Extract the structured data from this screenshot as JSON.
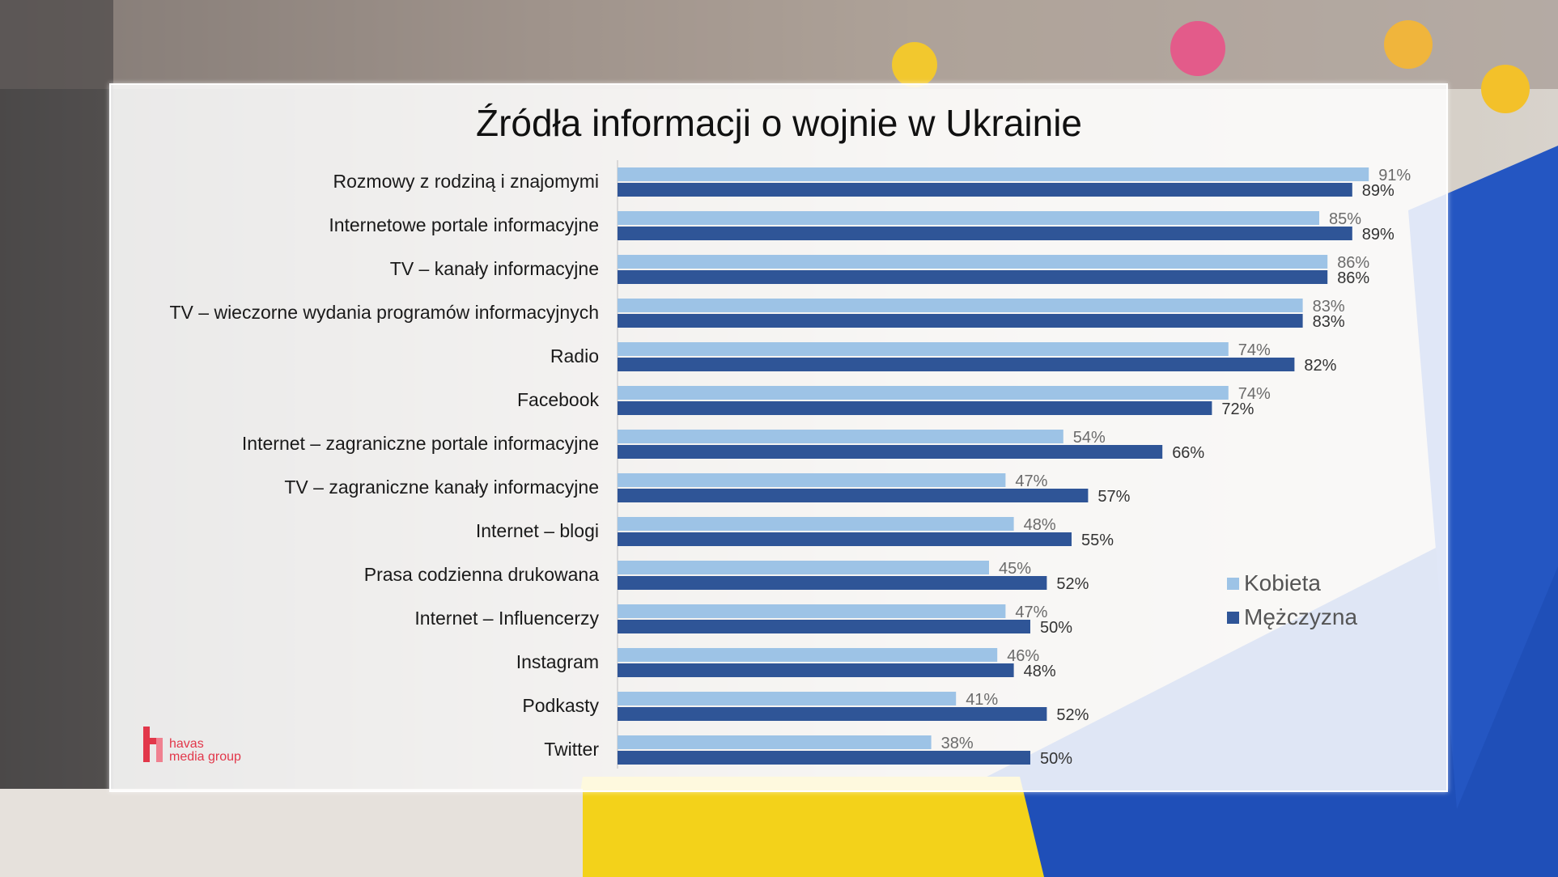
{
  "title": "Źródła informacji o wojnie w Ukrainie",
  "legend": [
    {
      "name": "Kobieta",
      "color": "#9dc3e6"
    },
    {
      "name": "Mężczyzna",
      "color": "#2f5597"
    }
  ],
  "logo": {
    "line1": "havas",
    "line2": "media group",
    "color": "#e2374a"
  },
  "chart_data": {
    "type": "bar",
    "orientation": "horizontal",
    "title": "Źródła informacji o wojnie w Ukrainie",
    "categories": [
      "Rozmowy z rodziną i znajomymi",
      "Internetowe portale informacyjne",
      "TV – kanały informacyjne",
      "TV – wieczorne wydania programów informacyjnych",
      "Radio",
      "Facebook",
      "Internet – zagraniczne portale informacyjne",
      "TV – zagraniczne kanały informacyjne",
      "Internet – blogi",
      "Prasa codzienna drukowana",
      "Internet – Influencerzy",
      "Instagram",
      "Podkasty",
      "Twitter"
    ],
    "series": [
      {
        "name": "Kobieta",
        "color": "#9dc3e6",
        "values": [
          91,
          85,
          86,
          83,
          74,
          74,
          54,
          47,
          48,
          45,
          47,
          46,
          41,
          38
        ],
        "labels": [
          "91%",
          "85%",
          "86%",
          "83%",
          "74%",
          "74%",
          "54%",
          "47%",
          "48%",
          "45%",
          "47%",
          "46%",
          "41%",
          "38%"
        ]
      },
      {
        "name": "Mężczyzna",
        "color": "#2f5597",
        "values": [
          89,
          89,
          86,
          83,
          82,
          72,
          66,
          57,
          55,
          52,
          50,
          48,
          52,
          50
        ],
        "labels": [
          "89%",
          "89%",
          "86%",
          "83%",
          "82%",
          "72%",
          "66%",
          "57%",
          "55%",
          "52%",
          "50%",
          "48%",
          "52%",
          "50%"
        ]
      }
    ],
    "xlim": [
      0,
      100
    ],
    "grid": false,
    "legend_position": "right"
  }
}
